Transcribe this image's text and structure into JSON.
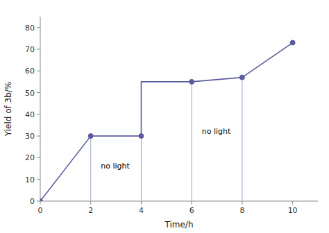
{
  "chart_data": {
    "type": "line",
    "xlabel": "Time/h",
    "ylabel": "Yield of 3b/%",
    "xlim": [
      0,
      11
    ],
    "ylim": [
      0,
      85
    ],
    "xticks": [
      0,
      2,
      4,
      6,
      8,
      10
    ],
    "yticks": [
      0,
      10,
      20,
      30,
      40,
      50,
      60,
      70,
      80
    ],
    "grid": false,
    "series": [
      {
        "type": "line",
        "color": "#5b5b9e",
        "x": [
          0,
          2,
          2,
          4,
          4,
          6,
          6,
          8,
          8,
          10
        ],
        "values": [
          0,
          30,
          30,
          30,
          55,
          55,
          55,
          57,
          57,
          73
        ]
      },
      {
        "type": "scatter",
        "marker": "circle",
        "color": "#5b5b9e",
        "x": [
          0,
          2,
          4,
          6,
          8,
          10
        ],
        "values": [
          0,
          30,
          30,
          55,
          57,
          73
        ]
      }
    ],
    "vlines": [
      {
        "x": 2,
        "y0": 0,
        "y1": 30
      },
      {
        "x": 4,
        "y0": 0,
        "y1": 30
      },
      {
        "x": 6,
        "y0": 0,
        "y1": 55
      },
      {
        "x": 8,
        "y0": 0,
        "y1": 57
      }
    ],
    "annotations": [
      {
        "text": "no light",
        "x": 2.4,
        "y": 16
      },
      {
        "text": "no light",
        "x": 6.4,
        "y": 32
      }
    ]
  }
}
